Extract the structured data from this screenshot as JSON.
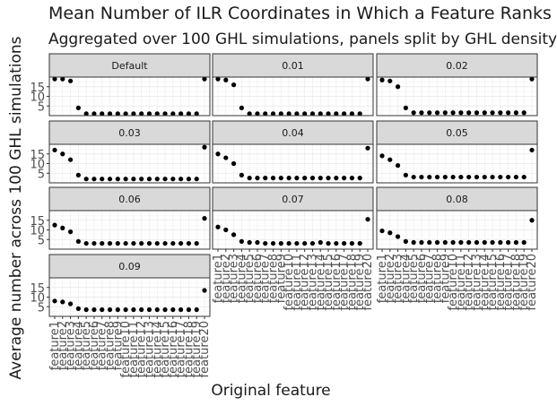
{
  "chart_data": {
    "type": "scatter",
    "title": "Mean Number of ILR Coordinates in Which a Feature Ranks",
    "subtitle": "Aggregated over 100 GHL simulations, panels split by GHL density",
    "xlabel": "Original feature",
    "ylabel": "Average number across 100 GHL simulations",
    "ylim": [
      0,
      20
    ],
    "yticks": [
      5,
      10,
      15
    ],
    "grid": true,
    "categories": [
      "feature1",
      "feature2",
      "feature3",
      "feature4",
      "feature5",
      "feature6",
      "feature7",
      "feature8",
      "feature9",
      "feature10",
      "feature11",
      "feature12",
      "feature13",
      "feature14",
      "feature15",
      "feature16",
      "feature17",
      "feature18",
      "feature19",
      "feature20"
    ],
    "panels": [
      {
        "label": "Default",
        "values": [
          19,
          19,
          18,
          4,
          1,
          1,
          1,
          1,
          1,
          1,
          1,
          1,
          1,
          1,
          1,
          1,
          1,
          1,
          1,
          19
        ]
      },
      {
        "label": "0.01",
        "values": [
          19,
          18.5,
          16,
          4,
          1,
          1,
          1,
          1,
          1,
          1,
          1,
          1,
          1,
          1,
          1,
          1,
          1,
          1,
          1,
          19
        ]
      },
      {
        "label": "0.02",
        "values": [
          18.5,
          18,
          15,
          4,
          1.5,
          1.5,
          1.5,
          1.5,
          1.5,
          1.5,
          1.5,
          1.5,
          1.5,
          1.5,
          1.5,
          1.5,
          1.5,
          1.5,
          1.5,
          19
        ]
      },
      {
        "label": "0.03",
        "values": [
          17,
          15,
          12,
          4,
          2,
          2,
          2,
          2,
          2,
          2,
          2,
          2,
          2,
          2,
          2,
          2,
          2,
          2,
          2,
          18.5
        ]
      },
      {
        "label": "0.04",
        "values": [
          15,
          13,
          10,
          4,
          2.5,
          2.5,
          2.5,
          2.5,
          2.5,
          2.5,
          2.5,
          2.5,
          2.5,
          2.5,
          2.5,
          2.5,
          2.5,
          2.5,
          2.5,
          18
        ]
      },
      {
        "label": "0.05",
        "values": [
          14,
          12,
          9,
          4,
          3,
          3,
          3,
          3,
          3,
          3,
          3,
          3,
          3,
          3,
          3,
          3,
          3,
          3,
          3,
          17
        ]
      },
      {
        "label": "0.06",
        "values": [
          12.5,
          11,
          9,
          4,
          3,
          3,
          3,
          3,
          3,
          3,
          3,
          3,
          3,
          3,
          3,
          3,
          3,
          3,
          3,
          16
        ]
      },
      {
        "label": "0.07",
        "values": [
          11.5,
          10,
          7.5,
          4,
          3.5,
          3.5,
          3,
          3,
          3,
          3,
          3,
          3,
          3,
          3.5,
          3,
          3,
          3,
          3,
          3,
          15.5
        ]
      },
      {
        "label": "0.08",
        "values": [
          9.5,
          8.5,
          6.5,
          4,
          3.5,
          3.5,
          3.5,
          3.5,
          3.5,
          3.5,
          3.5,
          3.5,
          3.5,
          3.5,
          3.5,
          3.5,
          3.5,
          3.5,
          3.5,
          15
        ]
      },
      {
        "label": "0.09",
        "values": [
          8,
          7.5,
          6.5,
          4,
          3.5,
          3.5,
          3.5,
          3.5,
          3.5,
          3.5,
          3.5,
          3.5,
          3.5,
          3.5,
          3.5,
          3.5,
          3.5,
          3.5,
          3.5,
          13.5
        ]
      }
    ]
  }
}
